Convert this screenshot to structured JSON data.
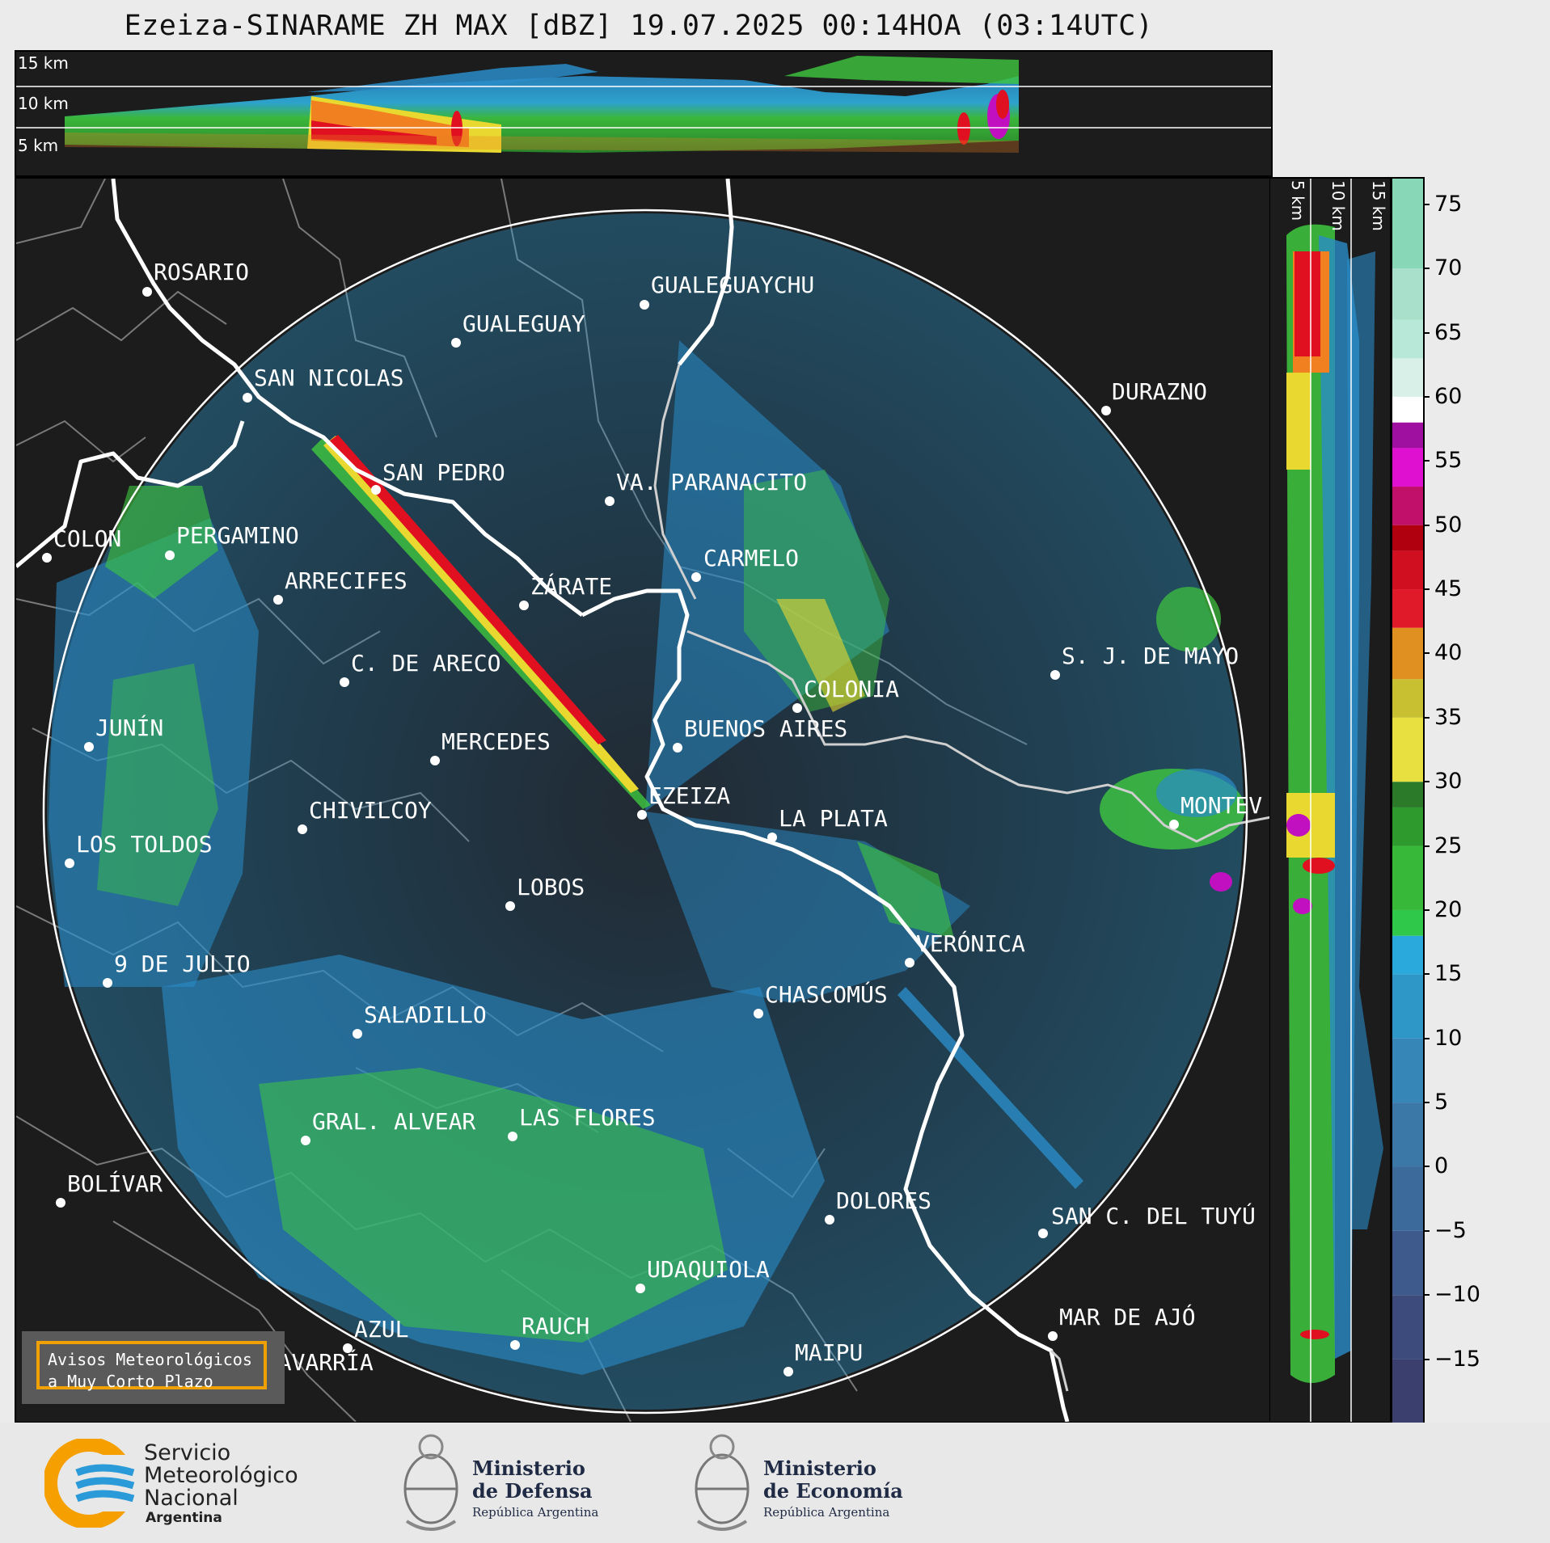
{
  "title": "Ezeiza-SINARAME ZH MAX [dBZ] 19.07.2025 00:14HOA (03:14UTC)",
  "top_altitudes": [
    "15 km",
    "10 km",
    "5 km"
  ],
  "side_altitudes": [
    "5 km",
    "10 km",
    "15 km"
  ],
  "cities": [
    {
      "name": "ROSARIO"
    },
    {
      "name": "GUALEGUAYCHU"
    },
    {
      "name": "GUALEGUAY"
    },
    {
      "name": "SAN NICOLAS"
    },
    {
      "name": "DURAZNO"
    },
    {
      "name": "SAN PEDRO"
    },
    {
      "name": "VA. PARANACITO"
    },
    {
      "name": "COLON"
    },
    {
      "name": "PERGAMINO"
    },
    {
      "name": "CARMELO"
    },
    {
      "name": "ARRECIFES"
    },
    {
      "name": "ZÁRATE"
    },
    {
      "name": "S. J. DE MAYO"
    },
    {
      "name": "C. DE ARECO"
    },
    {
      "name": "COLONIA"
    },
    {
      "name": "BUENOS AIRES"
    },
    {
      "name": "JUNÍN"
    },
    {
      "name": "MERCEDES"
    },
    {
      "name": "EZEIZA"
    },
    {
      "name": "MONTEV"
    },
    {
      "name": "CHIVILCOY"
    },
    {
      "name": "LA PLATA"
    },
    {
      "name": "LOS TOLDOS"
    },
    {
      "name": "LOBOS"
    },
    {
      "name": "VERÓNICA"
    },
    {
      "name": "9 DE JULIO"
    },
    {
      "name": "CHASCOMÚS"
    },
    {
      "name": "SALADILLO"
    },
    {
      "name": "GRAL. ALVEAR"
    },
    {
      "name": "LAS FLORES"
    },
    {
      "name": "BOLÍVAR"
    },
    {
      "name": "DOLORES"
    },
    {
      "name": "SAN C. DEL TUYÚ"
    },
    {
      "name": "UDAQUIOLA"
    },
    {
      "name": "MAR DE AJÓ"
    },
    {
      "name": "AZUL"
    },
    {
      "name": "RAUCH"
    },
    {
      "name": "OLAVARRÍA"
    },
    {
      "name": "MAIPU"
    }
  ],
  "warning": {
    "line1": "Avisos Meteorológicos",
    "line2": "a Muy Corto Plazo"
  },
  "colorbar": {
    "ticks": [
      "75",
      "70",
      "65",
      "60",
      "55",
      "50",
      "45",
      "40",
      "35",
      "30",
      "25",
      "20",
      "15",
      "10",
      "5",
      "0",
      "−5",
      "−10",
      "−15"
    ],
    "range": [
      -20,
      77
    ]
  },
  "footer": {
    "smn": {
      "l1": "Servicio",
      "l2": "Meteorológico",
      "l3": "Nacional",
      "l4": "Argentina"
    },
    "defensa": {
      "l1": "Ministerio",
      "l2": "de Defensa",
      "l3": "República Argentina"
    },
    "economia": {
      "l1": "Ministerio",
      "l2": "de Economía",
      "l3": "República Argentina"
    }
  },
  "colors": {
    "map_bg": "#1c1c1c",
    "echo_blue": "#2a8cc8",
    "echo_green": "#3ec83e",
    "echo_red": "#e01020",
    "accent_orange": "#f0a000"
  }
}
